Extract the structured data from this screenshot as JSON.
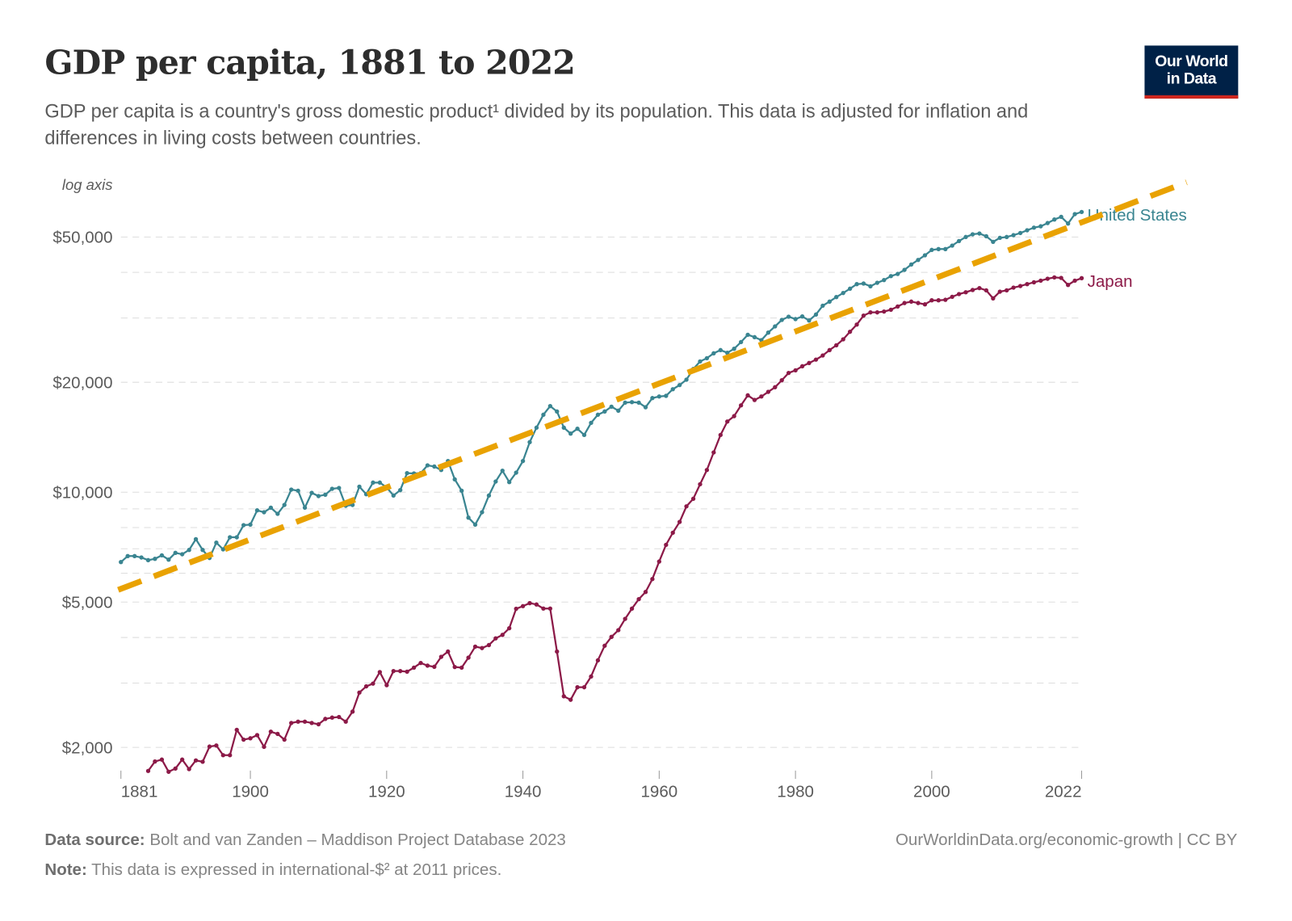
{
  "header": {
    "title": "GDP per capita, 1881 to 2022",
    "subtitle": "GDP per capita is a country's gross domestic product¹ divided by its population. This data is adjusted for inflation and differences in living costs between countries.",
    "logo_line1": "Our World",
    "logo_line2": "in Data"
  },
  "footer": {
    "source_label": "Data source:",
    "source_text": " Bolt and van Zanden – Maddison Project Database 2023",
    "note_label": "Note:",
    "note_text": " This data is expressed in international-$² at 2011 prices.",
    "right_text": "OurWorldinData.org/economic-growth | CC BY"
  },
  "colors": {
    "united_states": "#3a8591",
    "japan": "#8c1a48",
    "trend_line": "#e9a202",
    "logo_bg": "#002147",
    "logo_accent": "#ce261e"
  },
  "chart_data": {
    "type": "line",
    "title": "GDP per capita, 1881 to 2022",
    "ylabel": "log axis",
    "y_scale": "log",
    "xlim": [
      1881,
      2022
    ],
    "ylim": [
      1700,
      70000
    ],
    "grid": "horizontal dashed",
    "x_ticks": [
      "1881",
      "1900",
      "1920",
      "1940",
      "1960",
      "1980",
      "2000",
      "2022"
    ],
    "y_ticks": [
      {
        "value": 2000,
        "label": "$2,000"
      },
      {
        "value": 5000,
        "label": "$5,000"
      },
      {
        "value": 10000,
        "label": "$10,000"
      },
      {
        "value": 20000,
        "label": "$20,000"
      },
      {
        "value": 50000,
        "label": "$50,000"
      }
    ],
    "y_minor_grid": [
      3000,
      4000,
      6000,
      7000,
      8000,
      9000,
      30000,
      40000
    ],
    "series": [
      {
        "name": "United States",
        "start_year": 1881,
        "values": [
          6437,
          6682,
          6682,
          6625,
          6513,
          6569,
          6716,
          6535,
          6820,
          6761,
          6948,
          7436,
          6948,
          6603,
          7273,
          6972,
          7525,
          7525,
          8124,
          8151,
          8919,
          8814,
          9071,
          8725,
          9226,
          10164,
          10095,
          9071,
          9959,
          9759,
          9842,
          10216,
          10268,
          9180,
          9226,
          10356,
          9875,
          10624,
          10624,
          10304,
          9792,
          10130,
          11276,
          11256,
          11276,
          11842,
          11761,
          11505,
          12170,
          10842,
          10095,
          8519,
          8151,
          8814,
          9792,
          10695,
          11447,
          10659,
          11313,
          12170,
          13710,
          15021,
          16300,
          17209,
          16634,
          15021,
          14470,
          14920,
          14350,
          15488,
          16300,
          16634,
          17150,
          16720,
          17590,
          17650,
          17590,
          17090,
          18110,
          18290,
          18360,
          19150,
          19650,
          20330,
          21750,
          22810,
          23280,
          24010,
          24500,
          24090,
          24710,
          25780,
          26990,
          26580,
          26090,
          27360,
          28450,
          29640,
          30250,
          29790,
          30300,
          29530,
          30660,
          32420,
          33260,
          34230,
          35120,
          36090,
          37150,
          37280,
          36650,
          37460,
          38100,
          39080,
          39620,
          40640,
          42050,
          43280,
          44550,
          46100,
          46330,
          46330,
          47360,
          48750,
          50000,
          50850,
          51110,
          50250,
          48500,
          49750,
          50000,
          50590,
          51290,
          52170,
          53060,
          53510,
          54610,
          55830,
          56790,
          54420,
          57760,
          58550
        ]
      },
      {
        "name": "Japan",
        "start_year": 1885,
        "values": [
          1724,
          1830,
          1852,
          1715,
          1750,
          1852,
          1744,
          1842,
          1827,
          2010,
          2024,
          1904,
          1904,
          2234,
          2100,
          2118,
          2160,
          2007,
          2208,
          2178,
          2100,
          2333,
          2352,
          2352,
          2333,
          2313,
          2393,
          2414,
          2422,
          2352,
          2506,
          2826,
          2939,
          2990,
          3215,
          2960,
          3236,
          3236,
          3224,
          3308,
          3406,
          3349,
          3325,
          3540,
          3660,
          3320,
          3308,
          3522,
          3775,
          3742,
          3813,
          3977,
          4065,
          4240,
          4793,
          4875,
          4968,
          4925,
          4800,
          4800,
          3660,
          2760,
          2700,
          2922,
          2922,
          3127,
          3463,
          3797,
          4015,
          4188,
          4498,
          4799,
          5092,
          5331,
          5784,
          6457,
          7177,
          7744,
          8291,
          9147,
          9594,
          10515,
          11505,
          12850,
          14350,
          15620,
          16160,
          17290,
          18420,
          17890,
          18290,
          18830,
          19390,
          20260,
          21210,
          21570,
          22130,
          22580,
          23080,
          23680,
          24500,
          25260,
          26230,
          27500,
          28790,
          30450,
          31080,
          31080,
          31240,
          31610,
          32260,
          32980,
          33260,
          32980,
          32700,
          33540,
          33540,
          33660,
          34290,
          34880,
          35300,
          35790,
          36220,
          35720,
          33950,
          35420,
          35720,
          36340,
          36710,
          37150,
          37580,
          37970,
          38430,
          38760,
          38630,
          36950,
          37970,
          38560
        ]
      }
    ],
    "trend_line": {
      "style": "dashed",
      "start": {
        "x": 1880.6,
        "y": 5400
      },
      "end": {
        "x": 2037.4,
        "y": 70600
      }
    }
  }
}
